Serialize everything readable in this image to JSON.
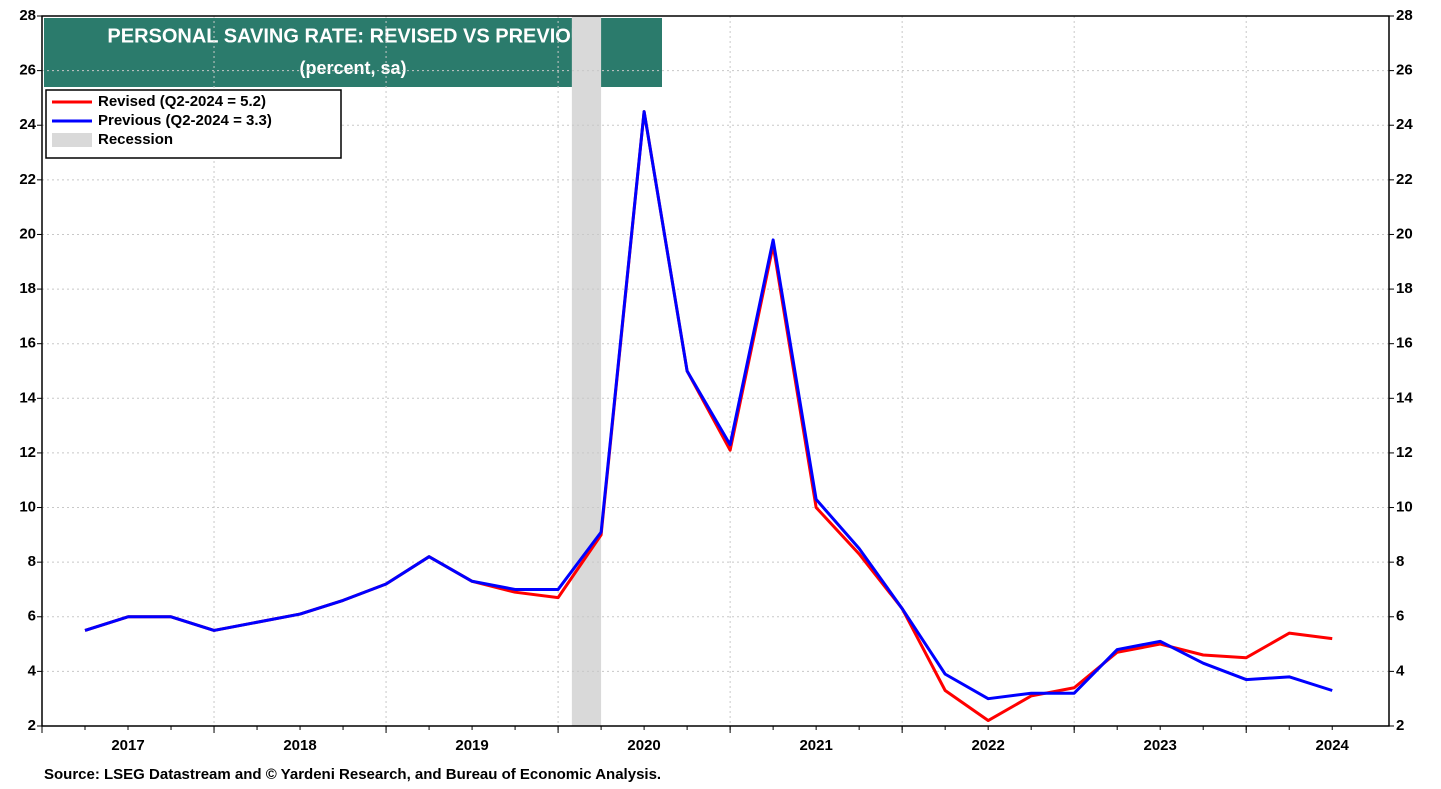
{
  "chart_data": {
    "type": "line",
    "title": "PERSONAL SAVING RATE: REVISED VS PREVIOUS",
    "subtitle": "(percent, sa)",
    "source": "Source: LSEG Datastream and © Yardeni Research, and Bureau of Economic Analysis.",
    "x": [
      2017.25,
      2017.5,
      2017.75,
      2018,
      2018.25,
      2018.5,
      2018.75,
      2019,
      2019.25,
      2019.5,
      2019.75,
      2020,
      2020.25,
      2020.5,
      2020.75,
      2021,
      2021.25,
      2021.5,
      2021.75,
      2022,
      2022.25,
      2022.5,
      2022.75,
      2023,
      2023.25,
      2023.5,
      2023.75,
      2024,
      2024.25,
      2024.5
    ],
    "series": [
      {
        "name": "Revised (Q2-2024 = 5.2)",
        "color": "#ff0000",
        "values": [
          5.5,
          6.0,
          6.0,
          5.5,
          5.8,
          6.1,
          6.6,
          7.2,
          8.2,
          7.3,
          6.9,
          6.7,
          9.0,
          24.5,
          15.0,
          12.1,
          19.6,
          10.0,
          8.3,
          6.3,
          3.3,
          2.2,
          3.1,
          3.4,
          4.7,
          5.0,
          4.6,
          4.5,
          5.4,
          5.2
        ]
      },
      {
        "name": "Previous (Q2-2024 = 3.3)",
        "color": "#0000ff",
        "values": [
          5.5,
          6.0,
          6.0,
          5.5,
          5.8,
          6.1,
          6.6,
          7.2,
          8.2,
          7.3,
          7.0,
          7.0,
          9.1,
          24.5,
          15.0,
          12.3,
          19.8,
          10.3,
          8.5,
          6.3,
          3.9,
          3.0,
          3.2,
          3.2,
          4.8,
          5.1,
          4.3,
          3.7,
          3.8,
          3.3
        ]
      }
    ],
    "recession": {
      "name": "Recession",
      "color": "#d9d9d9",
      "range": [
        2020.08,
        2020.25
      ]
    },
    "xlim": [
      2017,
      2024.83
    ],
    "xticks": [
      2017,
      2018,
      2019,
      2020,
      2021,
      2022,
      2023,
      2024
    ],
    "ylim": [
      2,
      28
    ],
    "yticks": [
      2,
      4,
      6,
      8,
      10,
      12,
      14,
      16,
      18,
      20,
      22,
      24,
      26,
      28
    ],
    "y2lim": [
      2,
      28
    ],
    "y2ticks": [
      2,
      4,
      6,
      8,
      10,
      12,
      14,
      16,
      18,
      20,
      22,
      24,
      26,
      28
    ],
    "grid": true,
    "legend": "upper left"
  }
}
